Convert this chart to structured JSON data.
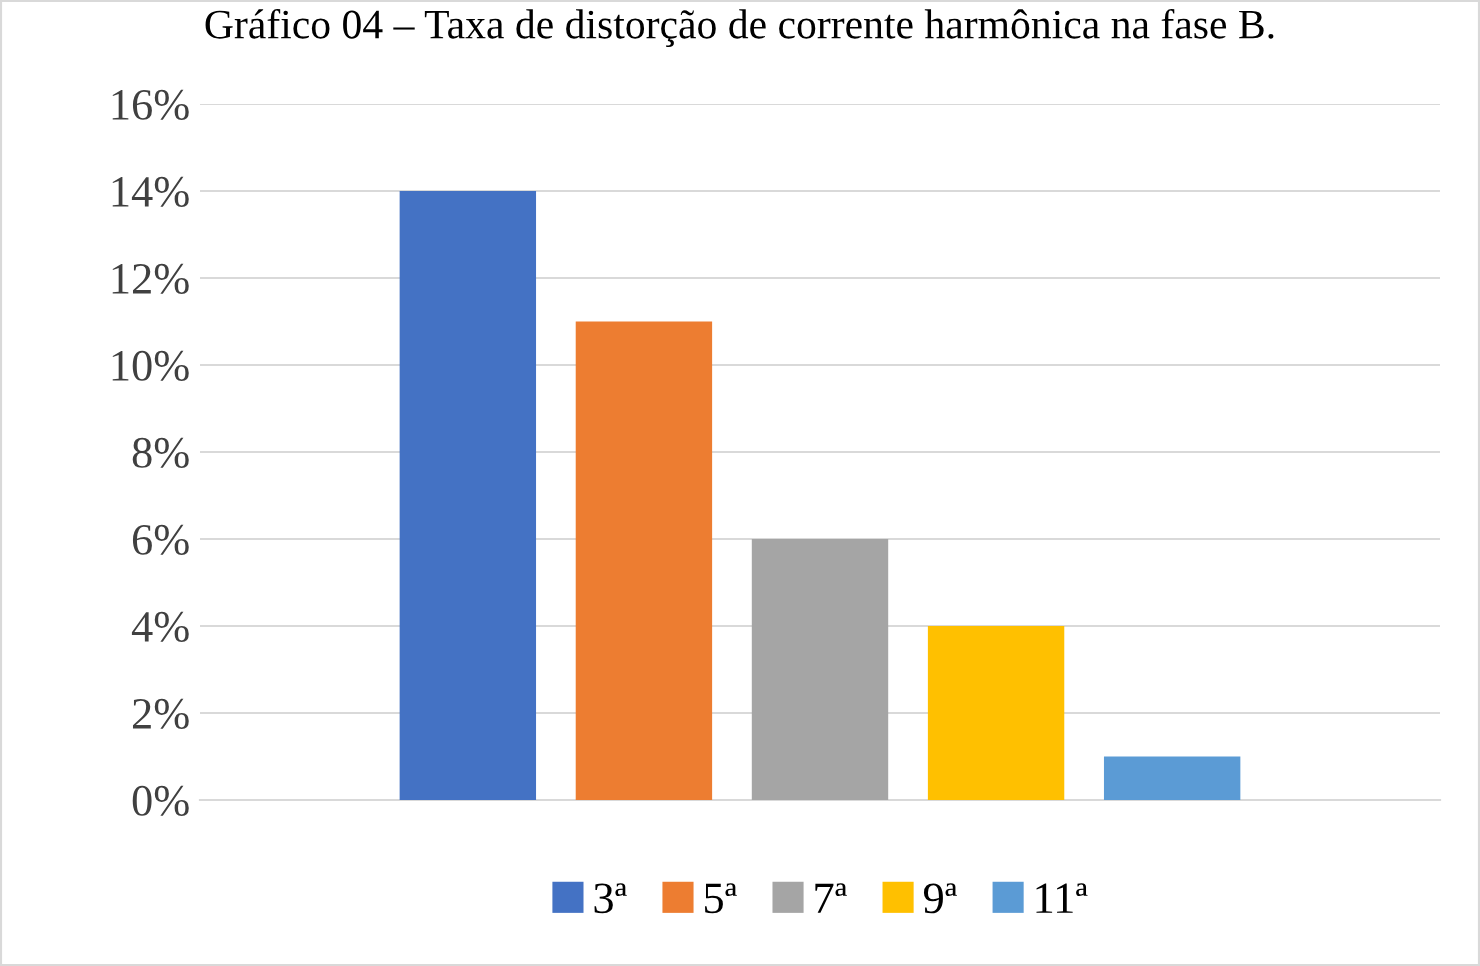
{
  "chart_data": {
    "type": "bar",
    "title": "Gráfico 04 – Taxa de distorção de corrente harmônica na fase B.",
    "categories": [
      null
    ],
    "series": [
      {
        "name": "3ª",
        "color": "#4472c4",
        "values": [
          14
        ]
      },
      {
        "name": "5ª",
        "color": "#ed7d31",
        "values": [
          11
        ]
      },
      {
        "name": "7ª",
        "color": "#a5a5a5",
        "values": [
          6
        ]
      },
      {
        "name": "9ª",
        "color": "#ffc000",
        "values": [
          4
        ]
      },
      {
        "name": "11ª",
        "color": "#5b9bd5",
        "values": [
          1
        ]
      }
    ],
    "ylim": [
      0,
      16
    ],
    "yticks": [
      {
        "value": 0,
        "label": "0%"
      },
      {
        "value": 2,
        "label": "2%"
      },
      {
        "value": 4,
        "label": "4%"
      },
      {
        "value": 6,
        "label": "6%"
      },
      {
        "value": 8,
        "label": "8%"
      },
      {
        "value": 10,
        "label": "10%"
      },
      {
        "value": 12,
        "label": "12%"
      },
      {
        "value": 14,
        "label": "14%"
      },
      {
        "value": 16,
        "label": "16%"
      }
    ],
    "grid": "y",
    "legend": "bottom"
  }
}
